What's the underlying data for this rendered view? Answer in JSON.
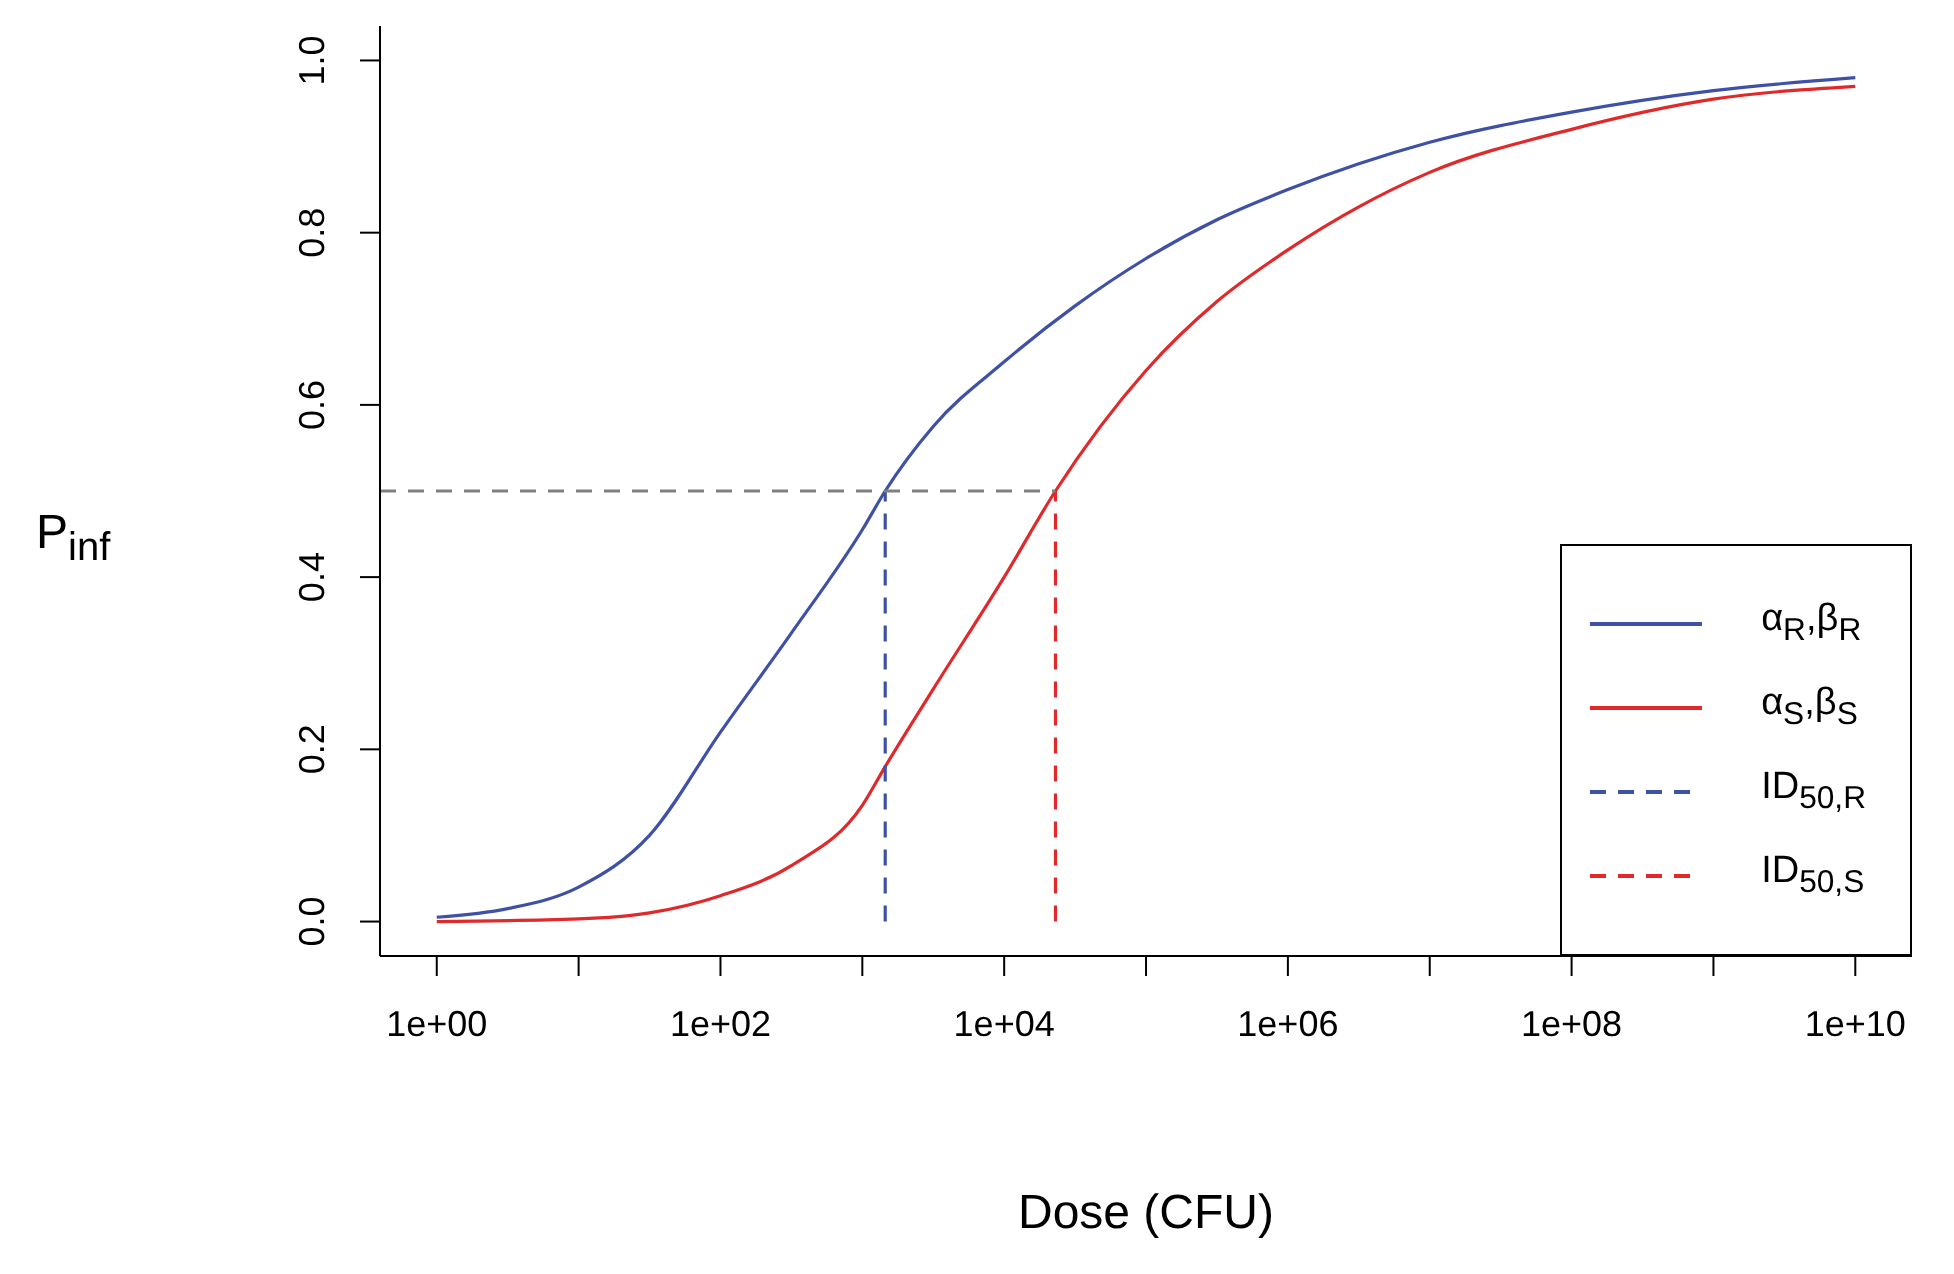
{
  "chart_data": {
    "type": "line",
    "xlabel": "Dose (CFU)",
    "ylabel": "P$_{inf}$",
    "log": "x",
    "legend": "bottom right",
    "xlim": [
      0.398,
      25100000000.0
    ],
    "ylim": [
      -0.04,
      1.04
    ],
    "xticks": [
      {
        "value": 1,
        "label": "1e+00"
      },
      {
        "value": 10,
        "label": null
      },
      {
        "value": 100,
        "label": "1e+02"
      },
      {
        "value": 1000,
        "label": null
      },
      {
        "value": 10000,
        "label": "1e+04"
      },
      {
        "value": 100000,
        "label": null
      },
      {
        "value": 1000000,
        "label": "1e+06"
      },
      {
        "value": 10000000,
        "label": null
      },
      {
        "value": 100000000,
        "label": "1e+08"
      },
      {
        "value": 1000000000,
        "label": null
      },
      {
        "value": 10000000000,
        "label": "1e+10"
      }
    ],
    "yticks": [
      {
        "value": 0,
        "label": "0.0"
      },
      {
        "value": 0.2,
        "label": "0.2"
      },
      {
        "value": 0.4,
        "label": "0.4"
      },
      {
        "value": 0.6,
        "label": "0.6"
      },
      {
        "value": 0.8,
        "label": "0.8"
      },
      {
        "value": 1,
        "label": "1.0"
      }
    ],
    "series": [
      {
        "name": "α$_{R}$,β$_{R}$",
        "color": "#3f51a5",
        "line_style": "solid",
        "x": [
          1,
          3.16,
          10,
          31.6,
          100,
          316,
          1000,
          1450,
          3162,
          10000,
          31620,
          100000,
          316200,
          1000000,
          3162000,
          10000000,
          100000000,
          1000000000,
          10000000000
        ],
        "values": [
          0.005,
          0.015,
          0.04,
          0.1,
          0.22,
          0.335,
          0.455,
          0.5,
          0.575,
          0.65,
          0.715,
          0.77,
          0.815,
          0.85,
          0.88,
          0.905,
          0.94,
          0.965,
          0.98
        ]
      },
      {
        "name": "α$_{S}$,β$_{S}$",
        "color": "#e0292b",
        "line_style": "solid",
        "x": [
          1,
          10,
          31.6,
          100,
          316,
          1000,
          1450,
          3162,
          10000,
          23000,
          100000,
          316200,
          1000000,
          3162000,
          10000000,
          100000000,
          1000000000,
          10000000000
        ],
        "values": [
          0,
          0.003,
          0.01,
          0.03,
          0.065,
          0.135,
          0.18,
          0.27,
          0.4,
          0.5,
          0.64,
          0.72,
          0.78,
          0.83,
          0.87,
          0.92,
          0.955,
          0.97
        ]
      },
      {
        "name": "ID$_{50,R}$",
        "color": "#3f51a5",
        "line_style": "dashed",
        "x": [
          1450,
          1450
        ],
        "values": [
          0,
          0.5
        ]
      },
      {
        "name": "ID$_{50,S}$",
        "color": "#e0292b",
        "line_style": "dashed",
        "x": [
          23000,
          23000
        ],
        "values": [
          0,
          0.5
        ]
      },
      {
        "color": "#808080",
        "line_style": "dashed",
        "x": [
          0.398,
          23000
        ],
        "values": [
          0.5,
          0.5
        ]
      }
    ]
  }
}
